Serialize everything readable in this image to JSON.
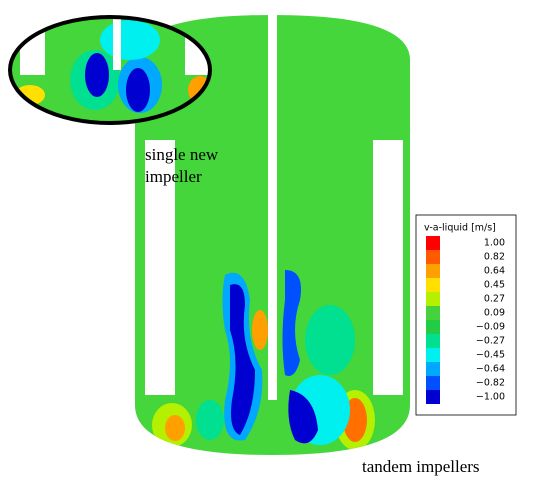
{
  "annotations": {
    "inset_caption": [
      "single new",
      "impeller"
    ],
    "main_caption": "tandem impellers"
  },
  "legend": {
    "title": "v-a-liquid [m/s]",
    "entries": [
      {
        "label": "1.00",
        "color": "#ff0000"
      },
      {
        "label": "0.82",
        "color": "#ff5a00"
      },
      {
        "label": "0.64",
        "color": "#ffa000"
      },
      {
        "label": "0.45",
        "color": "#ffe000"
      },
      {
        "label": "0.27",
        "color": "#b4f000"
      },
      {
        "label": "0.09",
        "color": "#46d23c"
      },
      {
        "label": "−0.09",
        "color": "#22cc44"
      },
      {
        "label": "−0.27",
        "color": "#00e090"
      },
      {
        "label": "−0.45",
        "color": "#00f0f0"
      },
      {
        "label": "−0.64",
        "color": "#00a8ff"
      },
      {
        "label": "−0.82",
        "color": "#0050ff"
      },
      {
        "label": "−1.00",
        "color": "#0000d0"
      }
    ]
  }
}
